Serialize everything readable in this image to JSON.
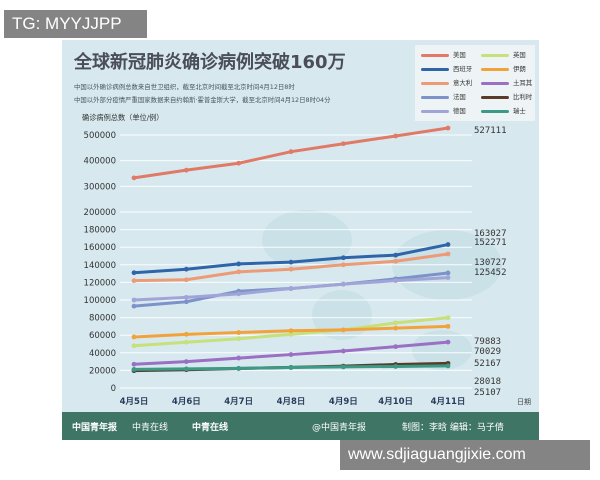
{
  "overlay_top": "TG: MYYJJPP",
  "overlay_bottom": "www.sdjiaguangjixie.com",
  "colors": {
    "background": "#d7e9ef",
    "footer": "#3f7565"
  },
  "chart_data": {
    "type": "line",
    "title": "全球新冠肺炎确诊病例突破160万",
    "subtitles": [
      "中国以外确诊病例总数来自世卫组织，截至北京时间截至北京时间4月12日8时",
      "中国以外部分疫情严重国家数据来自约翰斯·霍普金斯大学，截至北京时间4月12日8时04分"
    ],
    "ylabel": "确诊病例总数（单位/例）",
    "xlabel": "日期",
    "x": [
      "4月5日",
      "4月6日",
      "4月7日",
      "4月8日",
      "4月9日",
      "4月10日",
      "4月11日"
    ],
    "y_ticks": [
      0,
      20000,
      40000,
      60000,
      80000,
      100000,
      120000,
      140000,
      160000,
      180000,
      200000,
      300000,
      400000,
      500000
    ],
    "legend_position": "top-right",
    "grid": true,
    "series": [
      {
        "name": "美国",
        "color": "#e07a66",
        "values": [
          333000,
          363000,
          390000,
          435000,
          466000,
          496000,
          527111
        ]
      },
      {
        "name": "西班牙",
        "color": "#2f64a8",
        "values": [
          131000,
          135000,
          141000,
          143000,
          148000,
          151000,
          163027
        ]
      },
      {
        "name": "意大利",
        "color": "#ec9b76",
        "values": [
          122000,
          123000,
          132000,
          135000,
          140000,
          144000,
          152271
        ]
      },
      {
        "name": "法国",
        "color": "#7c93c9",
        "values": [
          93000,
          98000,
          110000,
          113000,
          118000,
          124000,
          130727
        ]
      },
      {
        "name": "德国",
        "color": "#a1a4d6",
        "values": [
          100000,
          103000,
          107000,
          113000,
          118000,
          122000,
          125452
        ]
      },
      {
        "name": "英国",
        "color": "#c6e07a",
        "values": [
          48000,
          52000,
          56000,
          61000,
          66000,
          74000,
          79883
        ]
      },
      {
        "name": "伊朗",
        "color": "#f2a23a",
        "values": [
          58000,
          61000,
          63000,
          65000,
          66000,
          68000,
          70029
        ]
      },
      {
        "name": "土耳其",
        "color": "#9b6fc4",
        "values": [
          27000,
          30000,
          34000,
          38000,
          42000,
          47000,
          52167
        ]
      },
      {
        "name": "比利时",
        "color": "#5a3b2a",
        "values": [
          19700,
          20800,
          22200,
          23400,
          24900,
          26700,
          28018
        ]
      },
      {
        "name": "瑞士",
        "color": "#3d9a86",
        "values": [
          21100,
          21700,
          22300,
          23300,
          24000,
          24500,
          25107
        ]
      }
    ],
    "end_labels": [
      "527111",
      "163027",
      "152271",
      "130727",
      "125452",
      "79883",
      "70029",
      "52167",
      "28018",
      "25107"
    ]
  },
  "footer": {
    "logo1": "中国青年报",
    "logo2": "中青在线",
    "logo3": "中青在线",
    "handle": "@中国青年报",
    "credits": "制图：李晗  编辑：马子倩"
  }
}
